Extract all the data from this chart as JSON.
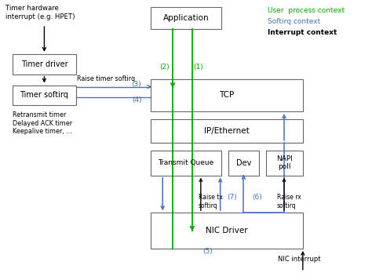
{
  "bg_color": "#ffffff",
  "green_color": "#00aa00",
  "blue_color": "#4472c4",
  "black_color": "#000000",
  "box_ec": "#666666",
  "legend_green": "User  process context",
  "legend_blue": "Softirq context",
  "legend_black": "Interrupt context",
  "hw_text": "Timer hardware\ninterrupt (e.g. HPET)",
  "retransmit_text": "Retransmit timer\nDelayed ACK timer\nKeepalive timer, ...",
  "raise_timer_text": "Raise timer softirq",
  "raise_tx_text": "Raise tx\nsoftirq",
  "raise_rx_text": "Raise rx\nsoftirq",
  "nic_interrupt_text": "NIC interrupt",
  "app_label": "Application",
  "tcp_label": "TCP",
  "ip_label": "IP/Ethernet",
  "tq_label": "Transmit Queue",
  "dev_label": "Dev",
  "napi_label": "NAPI\npoll",
  "nic_label": "NIC Driver",
  "td_label": "Timer driver",
  "ts_label": "Timer softirq",
  "lbl_1": "(1)",
  "lbl_2": "(2)",
  "lbl_3": "(3)",
  "lbl_4": "(4)",
  "lbl_5": "(5)",
  "lbl_6": "(6)",
  "lbl_7": "(7)"
}
